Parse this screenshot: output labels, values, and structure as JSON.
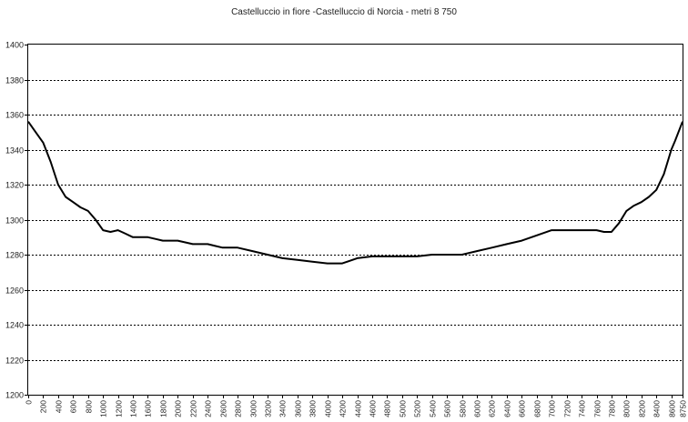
{
  "chart_data": {
    "type": "line",
    "title": "Castelluccio in fiore -Castelluccio di Norcia - metri 8 750",
    "xlabel": "",
    "ylabel": "",
    "ylim": [
      1200,
      1400
    ],
    "yticks": [
      1200,
      1220,
      1240,
      1260,
      1280,
      1300,
      1320,
      1340,
      1360,
      1380,
      1400
    ],
    "xticks": [
      0,
      200,
      400,
      600,
      800,
      1000,
      1200,
      1400,
      1600,
      1800,
      2000,
      2200,
      2400,
      2600,
      2800,
      3000,
      3200,
      3400,
      3600,
      3800,
      4000,
      4200,
      4400,
      4600,
      4800,
      5000,
      5200,
      5400,
      5600,
      5800,
      6000,
      6200,
      6400,
      6600,
      6800,
      7000,
      7200,
      7400,
      7600,
      7800,
      8000,
      8200,
      8400,
      8600,
      8750
    ],
    "grid": "horizontal dashed",
    "series": [
      {
        "x": [
          0,
          100,
          200,
          300,
          400,
          500,
          600,
          700,
          800,
          900,
          1000,
          1100,
          1200,
          1300,
          1400,
          1500,
          1600,
          1700,
          1800,
          2000,
          2100,
          2200,
          2400,
          2500,
          2600,
          2800,
          3000,
          3200,
          3400,
          3600,
          3800,
          4000,
          4200,
          4400,
          4600,
          4800,
          5000,
          5200,
          5400,
          5600,
          5800,
          6000,
          6200,
          6400,
          6600,
          6800,
          7000,
          7200,
          7400,
          7600,
          7700,
          7800,
          7900,
          8000,
          8100,
          8200,
          8300,
          8400,
          8500,
          8600,
          8650,
          8750
        ],
        "y": [
          1356,
          1350,
          1344,
          1333,
          1320,
          1313,
          1310,
          1307,
          1305,
          1300,
          1294,
          1293,
          1294,
          1292,
          1290,
          1290,
          1290,
          1289,
          1288,
          1288,
          1287,
          1286,
          1286,
          1285,
          1284,
          1284,
          1282,
          1280,
          1278,
          1277,
          1276,
          1275,
          1275,
          1278,
          1279,
          1279,
          1279,
          1279,
          1280,
          1280,
          1280,
          1282,
          1284,
          1286,
          1288,
          1291,
          1294,
          1294,
          1294,
          1294,
          1293,
          1293,
          1298,
          1305,
          1308,
          1310,
          1313,
          1317,
          1326,
          1340,
          1345,
          1356
        ]
      }
    ]
  }
}
